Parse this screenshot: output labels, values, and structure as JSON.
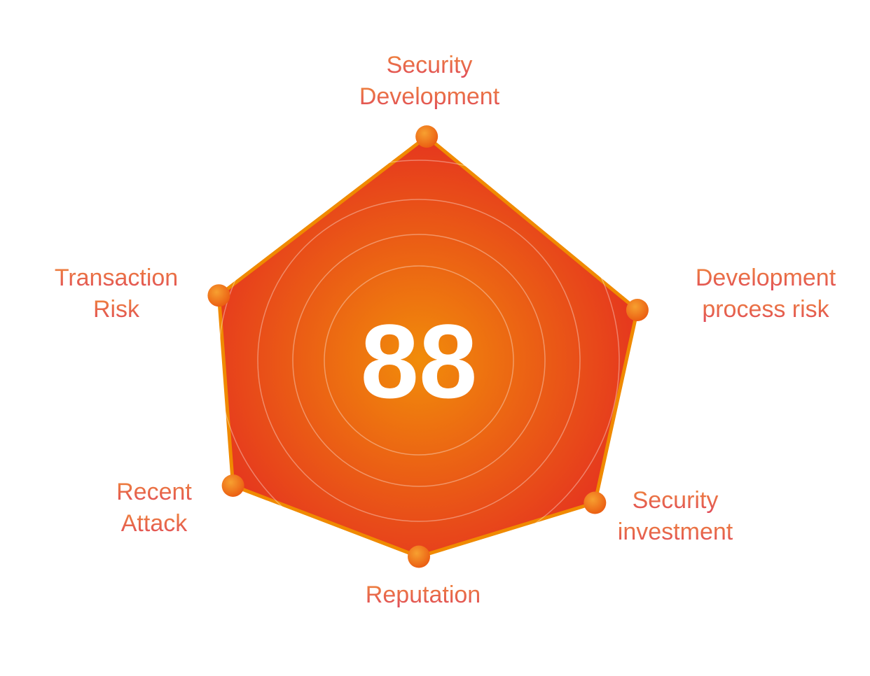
{
  "chart_data": {
    "type": "radar",
    "categories": [
      [
        "Security",
        "Development"
      ],
      [
        "Development",
        "process risk"
      ],
      [
        "Security",
        "investment"
      ],
      [
        "Reputation"
      ],
      [
        "Recent",
        "Attack"
      ],
      [
        "Transaction",
        "Risk"
      ]
    ],
    "values": [
      97,
      97,
      98,
      85,
      97,
      91
    ],
    "rlim": [
      0,
      100
    ],
    "score": 88,
    "color": "#e63a22",
    "line_color": "#f08a00"
  }
}
